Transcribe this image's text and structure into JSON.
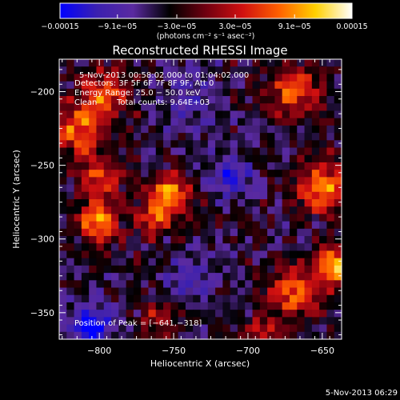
{
  "chart_data": {
    "type": "heatmap",
    "title": "Reconstructed RHESSI Image",
    "xlabel": "Heliocentric X (arcsec)",
    "ylabel": "Heliocentric Y (arcsec)",
    "xlim": [
      -827,
      -637
    ],
    "ylim": [
      -368,
      -178
    ],
    "x_ticks": [
      {
        "value": -800,
        "label": "−800"
      },
      {
        "value": -750,
        "label": "−750"
      },
      {
        "value": -700,
        "label": "−700"
      },
      {
        "value": -650,
        "label": "−650"
      }
    ],
    "y_ticks": [
      {
        "value": -200,
        "label": "−200"
      },
      {
        "value": -250,
        "label": "−250"
      },
      {
        "value": -300,
        "label": "−300"
      },
      {
        "value": -350,
        "label": "−350"
      }
    ],
    "annotations": [
      "5-Nov-2013 00:58:02.000 to 01:04:02.000",
      "Detectors: 3F 5F 6F 7F 8F 9F, Att 0",
      "Energy Range: 25.0 − 50.0 keV",
      "Clean",
      "Total counts: 9.64E+03"
    ],
    "peak_label": "Position of Peak = [−641,−318]",
    "colorbar": {
      "range": [
        -0.00015,
        0.00015
      ],
      "ticks": [
        {
          "value": -0.00015,
          "label": "−0.00015"
        },
        {
          "value": -9.1e-05,
          "label": "−9.1e−05"
        },
        {
          "value": -3e-05,
          "label": "−3.0e−05"
        },
        {
          "value": 3e-05,
          "label": "3.0e−05"
        },
        {
          "value": 9.1e-05,
          "label": "9.1e−05"
        },
        {
          "value": 0.00015,
          "label": "0.00015"
        }
      ],
      "units": "(photons cm⁻² s⁻¹ asec⁻²)",
      "colors": [
        "#0000ff",
        "#3a20b0",
        "#5a2aa0",
        "#000000",
        "#700010",
        "#d01010",
        "#ff6000",
        "#ffd000",
        "#ffffff"
      ]
    },
    "sources": [
      {
        "x": -800,
        "y": -288,
        "amp": 0.00015,
        "sigma": 9
      },
      {
        "x": -752,
        "y": -270,
        "amp": 0.00014,
        "sigma": 10
      },
      {
        "x": -763,
        "y": -286,
        "amp": 0.0001,
        "sigma": 8
      },
      {
        "x": -650,
        "y": -265,
        "amp": 0.00013,
        "sigma": 12
      },
      {
        "x": -641,
        "y": -318,
        "amp": 0.00015,
        "sigma": 9
      },
      {
        "x": -668,
        "y": -335,
        "amp": 0.00012,
        "sigma": 12
      },
      {
        "x": -668,
        "y": -200,
        "amp": 0.00011,
        "sigma": 12
      },
      {
        "x": -815,
        "y": -225,
        "amp": 0.00011,
        "sigma": 13
      },
      {
        "x": -795,
        "y": -200,
        "amp": 0.0001,
        "sigma": 12
      },
      {
        "x": -800,
        "y": -258,
        "amp": 9e-05,
        "sigma": 11
      },
      {
        "x": -760,
        "y": -355,
        "amp": 6e-05,
        "sigma": 9
      },
      {
        "x": -690,
        "y": -365,
        "amp": 7e-05,
        "sigma": 10
      },
      {
        "x": -805,
        "y": -360,
        "amp": -0.00011,
        "sigma": 10
      },
      {
        "x": -712,
        "y": -258,
        "amp": -8e-05,
        "sigma": 10
      },
      {
        "x": -740,
        "y": -325,
        "amp": -5e-05,
        "sigma": 11
      },
      {
        "x": -738,
        "y": -205,
        "amp": -4e-05,
        "sigma": 14
      }
    ],
    "grid": false
  },
  "footer": {
    "timestamp": "5-Nov-2013 06:29"
  }
}
